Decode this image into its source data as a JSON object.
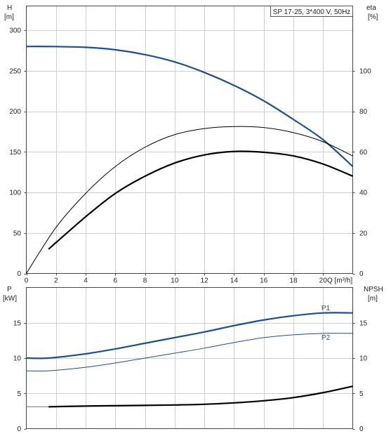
{
  "chart_data": [
    {
      "type": "line",
      "title": "SP 17-25, 3*400 V, 50Hz",
      "xlabel": "Q [m³/h]",
      "ylabel": "H\n[m]",
      "y2label": "eta\n[%]",
      "xlim": [
        0,
        22
      ],
      "ylim": [
        0,
        330
      ],
      "y2lim": [
        0,
        132
      ],
      "x_ticks": [
        0,
        2,
        4,
        6,
        8,
        10,
        12,
        14,
        16,
        18,
        20
      ],
      "x_tick_labels": [
        "0",
        "2",
        "4",
        "6",
        "8",
        "10",
        "12",
        "14",
        "16",
        "18",
        "20",
        "Q [m³/h]"
      ],
      "y_ticks": [
        0,
        50,
        100,
        150,
        200,
        250,
        300
      ],
      "y2_ticks": [
        0,
        20,
        40,
        60,
        80,
        100
      ],
      "grid": true,
      "series": [
        {
          "axis": "left",
          "color": "#1f4e8c",
          "width": 2.2,
          "x": [
            0,
            1.5,
            4,
            6,
            8,
            10,
            12,
            14,
            16,
            18,
            20,
            22
          ],
          "y": [
            280,
            280,
            279,
            276,
            270,
            261,
            248,
            232,
            213,
            190,
            165,
            132
          ]
        },
        {
          "axis": "right",
          "color": "#000000",
          "width": 1,
          "x": [
            0,
            2,
            4,
            6,
            8,
            10,
            12,
            14,
            16,
            18,
            20,
            22
          ],
          "y": [
            0,
            22.7,
            39.5,
            52.8,
            62.3,
            68.5,
            71.5,
            72.5,
            72,
            69.5,
            65,
            58
          ]
        },
        {
          "axis": "right",
          "color": "#000000",
          "width": 2.2,
          "x": [
            1.5,
            4,
            6,
            8,
            10,
            12,
            14,
            16,
            18,
            20,
            22
          ],
          "y": [
            12,
            28,
            39.5,
            48,
            54.5,
            58.5,
            60.2,
            59.8,
            58,
            54,
            48
          ]
        }
      ]
    },
    {
      "type": "line",
      "ylabel": "P\n[kW]",
      "y2label": "NPSH\n[m]",
      "xlim": [
        0,
        22
      ],
      "ylim": [
        0,
        20
      ],
      "y2lim": [
        0,
        20
      ],
      "y_ticks": [
        0,
        5,
        10,
        15
      ],
      "y2_ticks": [
        0,
        5,
        10,
        15
      ],
      "grid": true,
      "series": [
        {
          "name": "P1",
          "axis": "left",
          "color": "#1f4e8c",
          "width": 2.2,
          "x": [
            0,
            1.5,
            4,
            6,
            8,
            10,
            12,
            14,
            16,
            18,
            20,
            22
          ],
          "y": [
            10,
            10,
            10.6,
            11.3,
            12.1,
            12.9,
            13.7,
            14.6,
            15.4,
            16,
            16.4,
            16.4
          ]
        },
        {
          "name": "P2",
          "axis": "left",
          "color": "#1f4e8c",
          "width": 1,
          "x": [
            0,
            1.5,
            4,
            6,
            8,
            10,
            12,
            14,
            16,
            18,
            20,
            22
          ],
          "y": [
            8.2,
            8.2,
            8.7,
            9.3,
            10,
            10.7,
            11.4,
            12.2,
            12.9,
            13.3,
            13.5,
            13.5
          ]
        },
        {
          "axis": "right",
          "color": "#777777",
          "width": 1,
          "x": [
            0,
            1.5
          ],
          "y": [
            3.1,
            3.1
          ]
        },
        {
          "axis": "right",
          "color": "#000000",
          "width": 2.2,
          "x": [
            1.5,
            4,
            6,
            8,
            10,
            12,
            14,
            16,
            18,
            20,
            22
          ],
          "y": [
            3.1,
            3.2,
            3.25,
            3.3,
            3.35,
            3.45,
            3.65,
            3.95,
            4.4,
            5.1,
            6
          ]
        }
      ]
    }
  ]
}
